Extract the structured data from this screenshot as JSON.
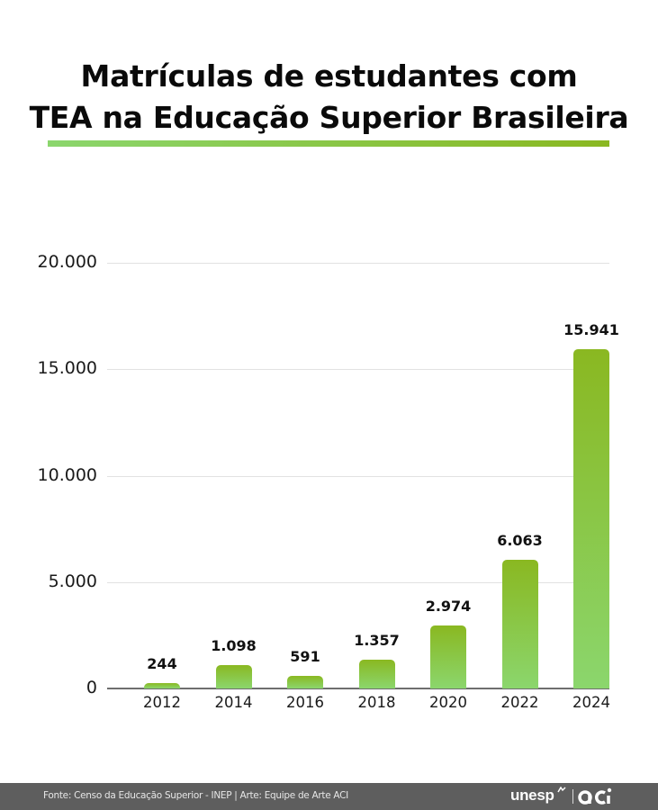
{
  "title": {
    "line1": "Matrículas de estudantes com",
    "line2": "TEA na Educação Superior Brasileira"
  },
  "colors": {
    "bar_top": "#8ab821",
    "bar_bottom": "#8bd66d",
    "rule_left": "#8bd66d",
    "rule_right": "#8ab821",
    "footer_bg": "#5e5e5e"
  },
  "chart_data": {
    "type": "bar",
    "title": "Matrículas de estudantes com TEA na Educação Superior Brasileira",
    "xlabel": "",
    "ylabel": "",
    "categories": [
      "2012",
      "2014",
      "2016",
      "2018",
      "2020",
      "2022",
      "2024"
    ],
    "values": [
      244,
      1098,
      591,
      1357,
      2974,
      6063,
      15941
    ],
    "value_labels": [
      "244",
      "1.098",
      "591",
      "1.357",
      "2.974",
      "6.063",
      "15.941"
    ],
    "yticks": [
      0,
      5000,
      10000,
      15000,
      20000
    ],
    "ytick_labels": [
      "0",
      "5.000",
      "10.000",
      "15.000",
      "20.000"
    ],
    "ylim": [
      0,
      20000
    ],
    "grid": true,
    "legend": null
  },
  "footer": {
    "source": "Fonte: Censo da Educação Superior - INEP | Arte: Equipe de Arte ACI",
    "logo_unesp": "unesp",
    "logo_aci": "aci"
  }
}
